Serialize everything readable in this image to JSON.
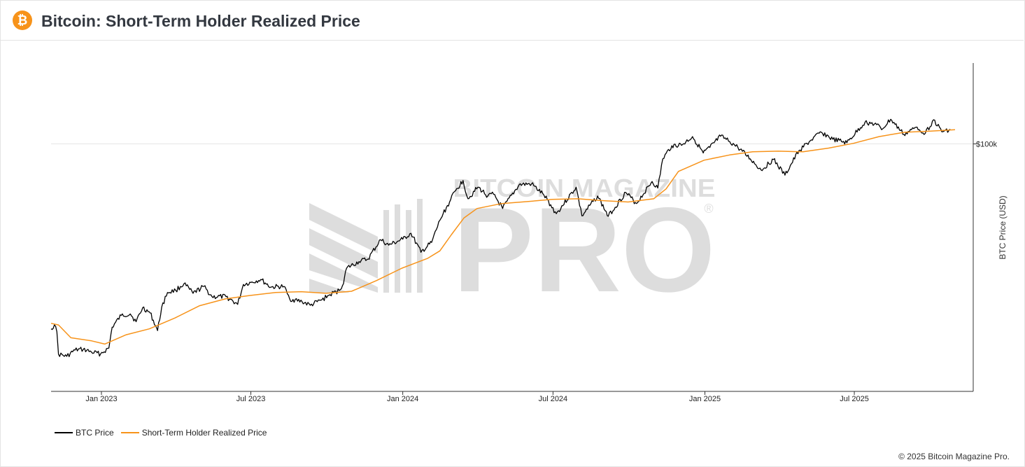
{
  "header": {
    "title": "Bitcoin: Short-Term Holder Realized Price",
    "logo_glyph": "₿"
  },
  "watermark": {
    "top_text": "BITCOIN MAGAZINE",
    "main_text": "PRO",
    "mark": "®"
  },
  "legend": {
    "items": [
      {
        "label": "BTC Price",
        "color": "#000000"
      },
      {
        "label": "Short-Term Holder Realized Price",
        "color": "#f7931a"
      }
    ]
  },
  "footer": {
    "copyright": "© 2025 Bitcoin Magazine Pro."
  },
  "chart_data": {
    "type": "line",
    "title": "Bitcoin: Short-Term Holder Realized Price",
    "xlabel": "",
    "ylabel": "BTC Price (USD)",
    "y_scale": "log",
    "ylim": [
      12000,
      200000
    ],
    "xlim": [
      "2022-11-01",
      "2025-10-31"
    ],
    "x_ticks": [
      {
        "date": "2023-01-01",
        "label": "Jan 2023"
      },
      {
        "date": "2023-07-01",
        "label": "Jul 2023"
      },
      {
        "date": "2024-01-01",
        "label": "Jan 2024"
      },
      {
        "date": "2024-07-01",
        "label": "Jul 2024"
      },
      {
        "date": "2025-01-01",
        "label": "Jan 2025"
      },
      {
        "date": "2025-07-01",
        "label": "Jul 2025"
      }
    ],
    "y_ticks": [
      {
        "value": 100000,
        "label": "$100k"
      }
    ],
    "series": [
      {
        "name": "BTC Price",
        "color": "#000000",
        "points": [
          [
            "2022-11-01",
            20500
          ],
          [
            "2022-11-05",
            21200
          ],
          [
            "2022-11-08",
            20000
          ],
          [
            "2022-11-10",
            16500
          ],
          [
            "2022-11-20",
            16200
          ],
          [
            "2022-11-30",
            17100
          ],
          [
            "2022-12-10",
            17200
          ],
          [
            "2022-12-20",
            16800
          ],
          [
            "2022-12-31",
            16550
          ],
          [
            "2023-01-10",
            17400
          ],
          [
            "2023-01-14",
            20800
          ],
          [
            "2023-01-25",
            23000
          ],
          [
            "2023-02-05",
            23300
          ],
          [
            "2023-02-12",
            21800
          ],
          [
            "2023-02-20",
            24600
          ],
          [
            "2023-03-01",
            23500
          ],
          [
            "2023-03-10",
            20200
          ],
          [
            "2023-03-15",
            24700
          ],
          [
            "2023-03-22",
            28000
          ],
          [
            "2023-04-01",
            28500
          ],
          [
            "2023-04-11",
            30200
          ],
          [
            "2023-04-22",
            27800
          ],
          [
            "2023-05-05",
            29500
          ],
          [
            "2023-05-15",
            27000
          ],
          [
            "2023-06-01",
            27000
          ],
          [
            "2023-06-15",
            25300
          ],
          [
            "2023-06-22",
            30000
          ],
          [
            "2023-07-01",
            30500
          ],
          [
            "2023-07-13",
            31300
          ],
          [
            "2023-07-25",
            29300
          ],
          [
            "2023-08-10",
            29500
          ],
          [
            "2023-08-17",
            26500
          ],
          [
            "2023-09-01",
            25900
          ],
          [
            "2023-09-11",
            25100
          ],
          [
            "2023-09-25",
            26300
          ],
          [
            "2023-10-05",
            27500
          ],
          [
            "2023-10-16",
            28500
          ],
          [
            "2023-10-20",
            29700
          ],
          [
            "2023-10-25",
            34500
          ],
          [
            "2023-11-09",
            36500
          ],
          [
            "2023-11-20",
            37300
          ],
          [
            "2023-12-05",
            44000
          ],
          [
            "2023-12-15",
            42000
          ],
          [
            "2024-01-01",
            44200
          ],
          [
            "2024-01-11",
            46500
          ],
          [
            "2024-01-23",
            39500
          ],
          [
            "2024-02-05",
            43000
          ],
          [
            "2024-02-15",
            52000
          ],
          [
            "2024-02-28",
            62000
          ],
          [
            "2024-03-05",
            67000
          ],
          [
            "2024-03-14",
            73100
          ],
          [
            "2024-03-20",
            62500
          ],
          [
            "2024-04-01",
            69000
          ],
          [
            "2024-04-13",
            64000
          ],
          [
            "2024-04-20",
            65000
          ],
          [
            "2024-05-01",
            57500
          ],
          [
            "2024-05-21",
            70500
          ],
          [
            "2024-06-05",
            71000
          ],
          [
            "2024-06-20",
            64500
          ],
          [
            "2024-07-05",
            55000
          ],
          [
            "2024-07-29",
            69000
          ],
          [
            "2024-08-05",
            54000
          ],
          [
            "2024-08-24",
            64000
          ],
          [
            "2024-09-06",
            53800
          ],
          [
            "2024-09-27",
            66000
          ],
          [
            "2024-10-10",
            60000
          ],
          [
            "2024-10-29",
            72500
          ],
          [
            "2024-11-05",
            68500
          ],
          [
            "2024-11-11",
            88000
          ],
          [
            "2024-11-22",
            98500
          ],
          [
            "2024-12-05",
            99500
          ],
          [
            "2024-12-17",
            106500
          ],
          [
            "2024-12-30",
            92500
          ],
          [
            "2025-01-07",
            97000
          ],
          [
            "2025-01-20",
            106800
          ],
          [
            "2025-01-31",
            102000
          ],
          [
            "2025-02-10",
            97000
          ],
          [
            "2025-02-25",
            88000
          ],
          [
            "2025-03-10",
            80000
          ],
          [
            "2025-03-25",
            87500
          ],
          [
            "2025-04-08",
            76500
          ],
          [
            "2025-04-25",
            94500
          ],
          [
            "2025-05-10",
            103500
          ],
          [
            "2025-05-22",
            110500
          ],
          [
            "2025-06-05",
            104000
          ],
          [
            "2025-06-22",
            101000
          ],
          [
            "2025-07-14",
            120500
          ],
          [
            "2025-07-28",
            118000
          ],
          [
            "2025-08-03",
            113000
          ],
          [
            "2025-08-14",
            123500
          ],
          [
            "2025-08-30",
            108500
          ],
          [
            "2025-09-15",
            115500
          ],
          [
            "2025-09-25",
            109500
          ],
          [
            "2025-10-05",
            123000
          ],
          [
            "2025-10-15",
            111000
          ],
          [
            "2025-10-25",
            113500
          ]
        ]
      },
      {
        "name": "Short-Term Holder Realized Price",
        "color": "#f7931a",
        "points": [
          [
            "2022-11-01",
            21500
          ],
          [
            "2022-11-10",
            21200
          ],
          [
            "2022-11-25",
            19000
          ],
          [
            "2022-12-20",
            18500
          ],
          [
            "2023-01-05",
            18000
          ],
          [
            "2023-01-31",
            19500
          ],
          [
            "2023-02-28",
            20500
          ],
          [
            "2023-03-31",
            22500
          ],
          [
            "2023-04-30",
            25000
          ],
          [
            "2023-05-31",
            26500
          ],
          [
            "2023-06-30",
            27300
          ],
          [
            "2023-07-31",
            28000
          ],
          [
            "2023-08-31",
            28200
          ],
          [
            "2023-09-30",
            27800
          ],
          [
            "2023-10-31",
            28300
          ],
          [
            "2023-11-30",
            31000
          ],
          [
            "2023-12-31",
            34500
          ],
          [
            "2024-01-31",
            37500
          ],
          [
            "2024-02-15",
            40000
          ],
          [
            "2024-02-29",
            46000
          ],
          [
            "2024-03-15",
            53000
          ],
          [
            "2024-03-31",
            57500
          ],
          [
            "2024-04-30",
            60000
          ],
          [
            "2024-05-31",
            61000
          ],
          [
            "2024-06-30",
            62200
          ],
          [
            "2024-07-31",
            62500
          ],
          [
            "2024-08-31",
            61500
          ],
          [
            "2024-09-30",
            60800
          ],
          [
            "2024-10-31",
            62500
          ],
          [
            "2024-11-15",
            68000
          ],
          [
            "2024-11-30",
            79000
          ],
          [
            "2024-12-31",
            87000
          ],
          [
            "2025-01-31",
            91000
          ],
          [
            "2025-02-28",
            93500
          ],
          [
            "2025-03-31",
            94000
          ],
          [
            "2025-04-30",
            93500
          ],
          [
            "2025-05-31",
            96500
          ],
          [
            "2025-06-30",
            100500
          ],
          [
            "2025-07-31",
            106500
          ],
          [
            "2025-08-31",
            110500
          ],
          [
            "2025-09-30",
            111500
          ],
          [
            "2025-10-31",
            113000
          ]
        ]
      }
    ]
  }
}
